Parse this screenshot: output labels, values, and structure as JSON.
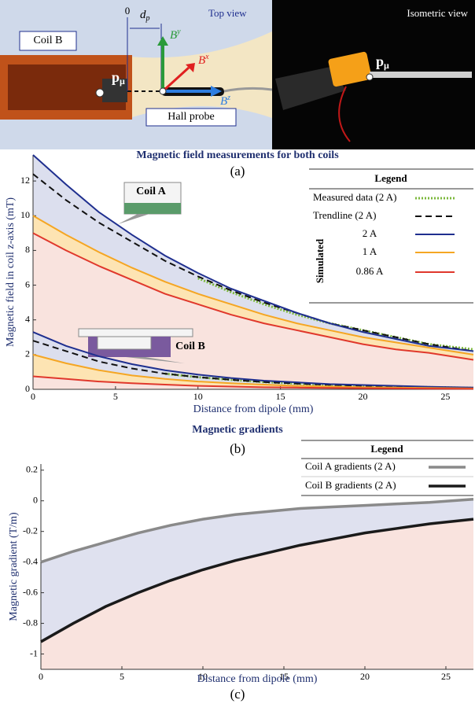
{
  "panel_a": {
    "coil_label": "Coil B",
    "origin": "0",
    "distance": {
      "symbol": "d",
      "subscript": "p"
    },
    "top_view": "Top view",
    "axis_y": {
      "symbol": "B",
      "superscript": "y"
    },
    "axis_x": {
      "symbol": "B",
      "superscript": "x"
    },
    "axis_z": {
      "symbol": "B",
      "superscript": "z"
    },
    "dipole": {
      "symbol": "p",
      "subscript": "μ"
    },
    "probe": "Hall probe",
    "isometric_view": "Isometric view",
    "dipole_iso": {
      "symbol": "p",
      "subscript": "μ"
    },
    "caption": "(a)"
  },
  "chart_data": [
    {
      "type": "line",
      "title": "Magnetic field measurements for both coils",
      "caption": "(b)",
      "x_label": "Distance from dipole (mm)",
      "y_label": "Magnetic field in coil z-axis (mT)",
      "xlim": [
        0,
        26.7
      ],
      "ylim": [
        0,
        13.5
      ],
      "xticks": [
        0,
        5,
        10,
        15,
        20,
        25
      ],
      "yticks": [
        0,
        2,
        4,
        6,
        8,
        10,
        12
      ],
      "legend": {
        "title": "Legend",
        "group": "Simulated"
      },
      "annotations": [
        "Coil A",
        "Coil B"
      ],
      "x": [
        0,
        2,
        4,
        6,
        8,
        10,
        12,
        14,
        16,
        18,
        20,
        22,
        24,
        26.7
      ],
      "series": [
        {
          "name": "Measured data (2 A)",
          "color": "#7cb83c",
          "style": "dotted",
          "coil_a": [
            null,
            null,
            null,
            null,
            null,
            6.4,
            5.6,
            4.9,
            4.3,
            3.8,
            3.4,
            3.0,
            2.6,
            2.3
          ],
          "coil_b": [
            null,
            null,
            null,
            null,
            0.9,
            0.7,
            0.55,
            0.42,
            0.33,
            0.26,
            0.2,
            0.15,
            0.12,
            0.08
          ]
        },
        {
          "name": "Trendline (2 A)",
          "color": "#111111",
          "style": "dashed",
          "coil_a": [
            12.4,
            10.9,
            9.6,
            8.5,
            7.4,
            6.5,
            5.7,
            5.0,
            4.4,
            3.8,
            3.4,
            3.0,
            2.6,
            2.2
          ],
          "coil_b": [
            2.8,
            2.2,
            1.6,
            1.2,
            0.9,
            0.7,
            0.55,
            0.42,
            0.33,
            0.26,
            0.2,
            0.15,
            0.12,
            0.08
          ]
        },
        {
          "name": "2 A",
          "color": "#1f2f8f",
          "style": "solid",
          "coil_a": [
            13.5,
            11.8,
            10.2,
            8.9,
            7.7,
            6.7,
            5.8,
            5.1,
            4.4,
            3.8,
            3.3,
            2.9,
            2.5,
            2.2
          ],
          "coil_b": [
            3.3,
            2.5,
            1.9,
            1.45,
            1.1,
            0.85,
            0.65,
            0.5,
            0.4,
            0.3,
            0.25,
            0.2,
            0.15,
            0.1
          ]
        },
        {
          "name": "1 A",
          "color": "#f5a623",
          "style": "solid",
          "coil_a": [
            10,
            8.9,
            7.9,
            7.0,
            6.2,
            5.5,
            4.9,
            4.3,
            3.8,
            3.4,
            3.0,
            2.7,
            2.4,
            2.0
          ],
          "coil_b": [
            2.0,
            1.5,
            1.1,
            0.8,
            0.6,
            0.45,
            0.35,
            0.27,
            0.2,
            0.16,
            0.12,
            0.1,
            0.08,
            0.05
          ]
        },
        {
          "name": "0.86 A",
          "color": "#e0382c",
          "style": "solid",
          "coil_a": [
            9,
            8.0,
            7.1,
            6.3,
            5.5,
            4.9,
            4.3,
            3.8,
            3.4,
            3.0,
            2.6,
            2.3,
            2.1,
            1.7
          ],
          "coil_b": [
            0.75,
            0.6,
            0.45,
            0.35,
            0.27,
            0.2,
            0.16,
            0.12,
            0.1,
            0.08,
            0.06,
            0.05,
            0.04,
            0.03
          ]
        }
      ]
    },
    {
      "type": "line",
      "title": "Magnetic gradients",
      "caption": "(c)",
      "x_label": "Distance from dipole (mm)",
      "y_label": "Magnetic gradient (T/m)",
      "xlim": [
        0,
        26.7
      ],
      "ylim": [
        -1.1,
        0.24
      ],
      "xticks": [
        0,
        5,
        10,
        15,
        20,
        25
      ],
      "yticks": [
        0.2,
        0,
        -0.2,
        -0.4,
        -0.6,
        -0.8,
        -1
      ],
      "legend": {
        "title": "Legend"
      },
      "x": [
        0,
        2,
        4,
        6,
        8,
        10,
        12,
        14,
        16,
        18,
        20,
        22,
        24,
        26.7
      ],
      "series": [
        {
          "name": "Coil A gradients (2 A)",
          "color": "#8a8a8a",
          "values": [
            -0.4,
            -0.33,
            -0.27,
            -0.21,
            -0.16,
            -0.12,
            -0.09,
            -0.07,
            -0.05,
            -0.04,
            -0.03,
            -0.02,
            -0.01,
            0.01
          ]
        },
        {
          "name": "Coil B gradients (2 A)",
          "color": "#1a1a1a",
          "values": [
            -0.92,
            -0.8,
            -0.69,
            -0.6,
            -0.52,
            -0.45,
            -0.39,
            -0.34,
            -0.29,
            -0.25,
            -0.21,
            -0.18,
            -0.15,
            -0.12
          ]
        }
      ]
    }
  ]
}
